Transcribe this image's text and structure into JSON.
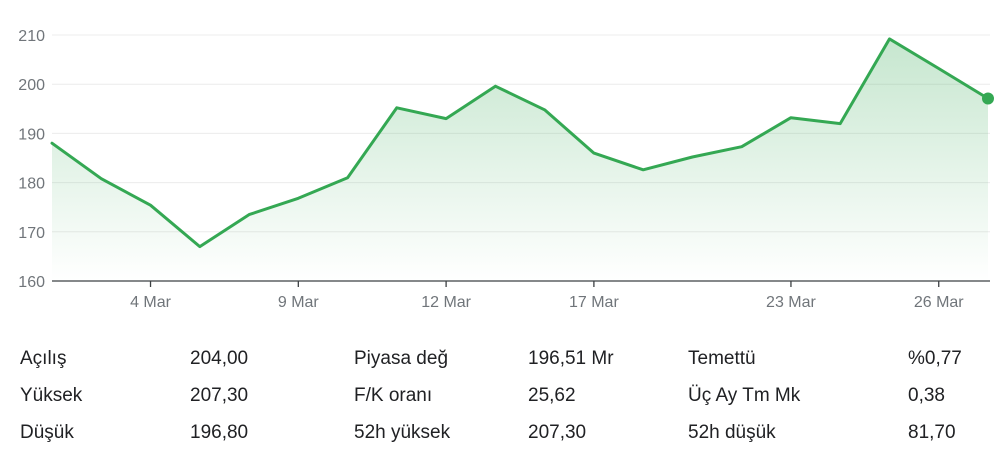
{
  "chart_data": {
    "type": "area",
    "x": [
      "2 Mar",
      "3 Mar",
      "4 Mar",
      "5 Mar",
      "6 Mar",
      "9 Mar",
      "10 Mar",
      "11 Mar",
      "12 Mar",
      "13 Mar",
      "16 Mar",
      "17 Mar",
      "18 Mar",
      "19 Mar",
      "20 Mar",
      "23 Mar",
      "24 Mar",
      "25 Mar",
      "26 Mar",
      "27 Mar"
    ],
    "y": [
      188,
      180.8,
      175.4,
      167,
      173.5,
      176.8,
      181,
      195.2,
      193,
      199.6,
      194.8,
      186,
      182.6,
      185.2,
      187.3,
      193.2,
      192,
      209.2,
      203.2,
      197.1
    ],
    "x_ticks": [
      "4 Mar",
      "9 Mar",
      "12 Mar",
      "17 Mar",
      "23 Mar",
      "26 Mar"
    ],
    "y_ticks": [
      "160",
      "170",
      "180",
      "190",
      "200",
      "210"
    ],
    "ylim": [
      160,
      210
    ],
    "color": "#34a853",
    "grid": true
  },
  "stats": [
    [
      {
        "label": "Açılış",
        "value": "204,00"
      },
      {
        "label": "Piyasa değ",
        "value": "196,51 Mr"
      },
      {
        "label": "Temettü",
        "value": "%0,77"
      }
    ],
    [
      {
        "label": "Yüksek",
        "value": "207,30"
      },
      {
        "label": "F/K oranı",
        "value": "25,62"
      },
      {
        "label": "Üç Ay Tm Mk",
        "value": "0,38"
      }
    ],
    [
      {
        "label": "Düşük",
        "value": "196,80"
      },
      {
        "label": "52h yüksek",
        "value": "207,30"
      },
      {
        "label": "52h düşük",
        "value": "81,70"
      }
    ]
  ]
}
